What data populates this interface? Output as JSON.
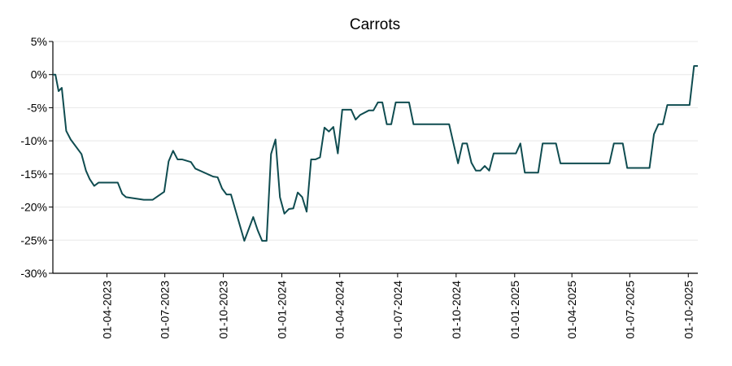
{
  "chart_data": {
    "type": "line",
    "title": "Carrots",
    "xlabel": "",
    "ylabel": "",
    "y_unit": "%",
    "ylim": [
      -30,
      5
    ],
    "xlim": [
      "2023-01-06",
      "2025-10-16"
    ],
    "grid": "horizontal",
    "legend": "none",
    "colors": {
      "line": "#0f4c50",
      "grid": "#e8e8e8",
      "axis": "#000000"
    },
    "y_ticks": [
      {
        "value": 5,
        "label": "5%"
      },
      {
        "value": 0,
        "label": "0%"
      },
      {
        "value": -5,
        "label": "-5%"
      },
      {
        "value": -10,
        "label": "-10%"
      },
      {
        "value": -15,
        "label": "-15%"
      },
      {
        "value": -20,
        "label": "-20%"
      },
      {
        "value": -25,
        "label": "-25%"
      },
      {
        "value": -30,
        "label": "-30%"
      }
    ],
    "x_ticks": [
      {
        "date": "2023-04-01",
        "label": "01-04-2023"
      },
      {
        "date": "2023-07-01",
        "label": "01-07-2023"
      },
      {
        "date": "2023-10-01",
        "label": "01-10-2023"
      },
      {
        "date": "2024-01-01",
        "label": "01-01-2024"
      },
      {
        "date": "2024-04-01",
        "label": "01-04-2024"
      },
      {
        "date": "2024-07-01",
        "label": "01-07-2024"
      },
      {
        "date": "2024-10-01",
        "label": "01-10-2024"
      },
      {
        "date": "2025-01-01",
        "label": "01-01-2025"
      },
      {
        "date": "2025-04-01",
        "label": "01-04-2025"
      },
      {
        "date": "2025-07-01",
        "label": "01-07-2025"
      },
      {
        "date": "2025-10-01",
        "label": "01-10-2025"
      }
    ],
    "series": [
      {
        "points": [
          [
            "2023-01-06",
            0.0
          ],
          [
            "2023-01-10",
            0.0
          ],
          [
            "2023-01-15",
            -2.5
          ],
          [
            "2023-01-20",
            -2.0
          ],
          [
            "2023-01-27",
            -8.5
          ],
          [
            "2023-02-03",
            -9.8
          ],
          [
            "2023-02-20",
            -12.0
          ],
          [
            "2023-02-27",
            -14.5
          ],
          [
            "2023-03-05",
            -15.8
          ],
          [
            "2023-03-12",
            -16.8
          ],
          [
            "2023-03-19",
            -16.3
          ],
          [
            "2023-04-10",
            -16.3
          ],
          [
            "2023-04-18",
            -16.3
          ],
          [
            "2023-04-25",
            -18.0
          ],
          [
            "2023-05-01",
            -18.5
          ],
          [
            "2023-05-29",
            -18.9
          ],
          [
            "2023-06-12",
            -18.9
          ],
          [
            "2023-06-30",
            -17.7
          ],
          [
            "2023-07-07",
            -13.1
          ],
          [
            "2023-07-14",
            -11.5
          ],
          [
            "2023-07-21",
            -12.8
          ],
          [
            "2023-07-28",
            -12.8
          ],
          [
            "2023-08-11",
            -13.2
          ],
          [
            "2023-08-18",
            -14.2
          ],
          [
            "2023-09-15",
            -15.4
          ],
          [
            "2023-09-22",
            -15.5
          ],
          [
            "2023-09-29",
            -17.2
          ],
          [
            "2023-10-06",
            -18.1
          ],
          [
            "2023-10-13",
            -18.1
          ],
          [
            "2023-11-03",
            -25.1
          ],
          [
            "2023-11-17",
            -21.5
          ],
          [
            "2023-11-24",
            -23.5
          ],
          [
            "2023-12-01",
            -25.1
          ],
          [
            "2023-12-08",
            -25.1
          ],
          [
            "2023-12-15",
            -12.0
          ],
          [
            "2023-12-22",
            -9.8
          ],
          [
            "2023-12-29",
            -18.5
          ],
          [
            "2024-01-05",
            -21.0
          ],
          [
            "2024-01-12",
            -20.3
          ],
          [
            "2024-01-19",
            -20.2
          ],
          [
            "2024-01-26",
            -17.8
          ],
          [
            "2024-02-02",
            -18.5
          ],
          [
            "2024-02-09",
            -20.7
          ],
          [
            "2024-02-16",
            -12.8
          ],
          [
            "2024-02-23",
            -12.8
          ],
          [
            "2024-03-01",
            -12.5
          ],
          [
            "2024-03-08",
            -8.0
          ],
          [
            "2024-03-15",
            -8.6
          ],
          [
            "2024-03-22",
            -7.9
          ],
          [
            "2024-03-29",
            -11.9
          ],
          [
            "2024-04-05",
            -5.3
          ],
          [
            "2024-04-19",
            -5.3
          ],
          [
            "2024-04-26",
            -6.8
          ],
          [
            "2024-05-03",
            -6.1
          ],
          [
            "2024-05-17",
            -5.4
          ],
          [
            "2024-05-24",
            -5.4
          ],
          [
            "2024-05-31",
            -4.2
          ],
          [
            "2024-06-07",
            -4.2
          ],
          [
            "2024-06-14",
            -7.5
          ],
          [
            "2024-06-21",
            -7.5
          ],
          [
            "2024-06-28",
            -4.2
          ],
          [
            "2024-07-19",
            -4.2
          ],
          [
            "2024-07-26",
            -7.5
          ],
          [
            "2024-09-20",
            -7.5
          ],
          [
            "2024-10-04",
            -13.4
          ],
          [
            "2024-10-11",
            -10.4
          ],
          [
            "2024-10-18",
            -10.4
          ],
          [
            "2024-10-25",
            -13.3
          ],
          [
            "2024-11-01",
            -14.5
          ],
          [
            "2024-11-08",
            -14.5
          ],
          [
            "2024-11-15",
            -13.8
          ],
          [
            "2024-11-22",
            -14.5
          ],
          [
            "2024-11-29",
            -11.9
          ],
          [
            "2025-01-03",
            -11.9
          ],
          [
            "2025-01-10",
            -10.4
          ],
          [
            "2025-01-17",
            -14.8
          ],
          [
            "2025-02-07",
            -14.8
          ],
          [
            "2025-02-14",
            -10.4
          ],
          [
            "2025-03-07",
            -10.4
          ],
          [
            "2025-03-14",
            -13.4
          ],
          [
            "2025-05-30",
            -13.4
          ],
          [
            "2025-06-06",
            -10.4
          ],
          [
            "2025-06-20",
            -10.4
          ],
          [
            "2025-06-27",
            -14.1
          ],
          [
            "2025-08-01",
            -14.1
          ],
          [
            "2025-08-08",
            -9.0
          ],
          [
            "2025-08-15",
            -7.5
          ],
          [
            "2025-08-22",
            -7.5
          ],
          [
            "2025-08-29",
            -4.6
          ],
          [
            "2025-10-03",
            -4.6
          ],
          [
            "2025-10-10",
            1.3
          ],
          [
            "2025-10-16",
            1.3
          ]
        ]
      }
    ]
  }
}
